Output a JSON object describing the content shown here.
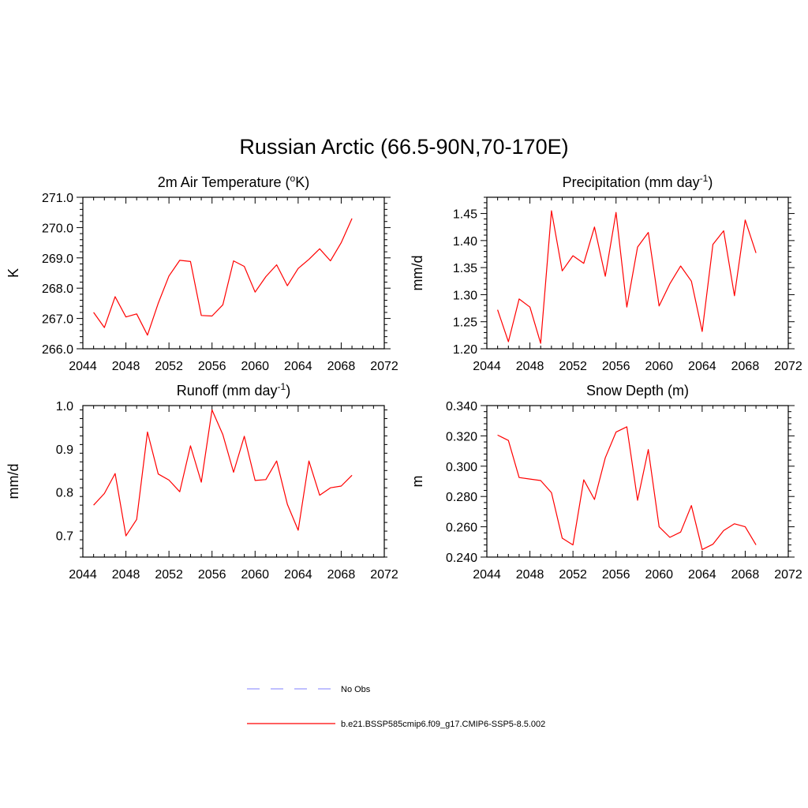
{
  "figure": {
    "title": "Russian Arctic (66.5-90N,70-170E)"
  },
  "colors": {
    "model_line": "#ff0000",
    "obs_line": "#9999ff",
    "axes": "#000000"
  },
  "legend": [
    {
      "label": "No Obs",
      "style": "dashed",
      "color": "#9999ff"
    },
    {
      "label": "b.e21.BSSP585cmip6.f09_g17.CMIP6-SSP5-8.5.002",
      "style": "solid",
      "color": "#ff0000"
    }
  ],
  "chart_data": [
    {
      "type": "line",
      "title": "2m Air Temperature (",
      "title_sup": "o",
      "title_after": "K)",
      "ylabel": "K",
      "xlim": [
        2044,
        2072
      ],
      "ylim": [
        266.0,
        271.0
      ],
      "xticks": [
        2044,
        2048,
        2052,
        2056,
        2060,
        2064,
        2068,
        2072
      ],
      "yticks": [
        "266.0",
        "267.0",
        "268.0",
        "269.0",
        "270.0",
        "271.0"
      ],
      "series": [
        {
          "x": [
            2045,
            2046,
            2047,
            2048,
            2049,
            2050,
            2051,
            2052,
            2053,
            2054,
            2055,
            2056,
            2057,
            2058,
            2059,
            2060,
            2061,
            2062,
            2063,
            2064,
            2065,
            2066,
            2067,
            2068,
            2069
          ],
          "values": [
            267.2,
            266.7,
            267.72,
            267.05,
            267.15,
            266.45,
            267.5,
            268.4,
            268.92,
            268.88,
            267.1,
            267.08,
            267.45,
            268.9,
            268.72,
            267.87,
            268.38,
            268.77,
            268.08,
            268.65,
            268.95,
            269.3,
            268.9,
            269.5,
            270.3
          ]
        }
      ]
    },
    {
      "type": "line",
      "title": "Precipitation (mm day",
      "title_sup": "-1",
      "title_after": ")",
      "ylabel": "mm/d",
      "xlim": [
        2044,
        2072
      ],
      "ylim": [
        1.2,
        1.48
      ],
      "xticks": [
        2044,
        2048,
        2052,
        2056,
        2060,
        2064,
        2068,
        2072
      ],
      "yticks": [
        "1.20",
        "1.25",
        "1.30",
        "1.35",
        "1.40",
        "1.45"
      ],
      "series": [
        {
          "x": [
            2045,
            2046,
            2047,
            2048,
            2049,
            2050,
            2051,
            2052,
            2053,
            2054,
            2055,
            2056,
            2057,
            2058,
            2059,
            2060,
            2061,
            2062,
            2063,
            2064,
            2065,
            2066,
            2067,
            2068,
            2069
          ],
          "values": [
            1.272,
            1.213,
            1.292,
            1.277,
            1.21,
            1.455,
            1.344,
            1.372,
            1.358,
            1.425,
            1.334,
            1.452,
            1.277,
            1.388,
            1.415,
            1.279,
            1.32,
            1.353,
            1.325,
            1.232,
            1.393,
            1.418,
            1.298,
            1.438,
            1.377
          ]
        }
      ]
    },
    {
      "type": "line",
      "title": "Runoff (mm day",
      "title_sup": "-1",
      "title_after": ")",
      "ylabel": "mm/d",
      "xlim": [
        2044,
        2072
      ],
      "ylim": [
        0.65,
        1.0
      ],
      "xticks": [
        2044,
        2048,
        2052,
        2056,
        2060,
        2064,
        2068,
        2072
      ],
      "yticks": [
        "0.7",
        "0.8",
        "0.9",
        "1.0"
      ],
      "series": [
        {
          "x": [
            2045,
            2046,
            2047,
            2048,
            2049,
            2050,
            2051,
            2052,
            2053,
            2054,
            2055,
            2056,
            2057,
            2058,
            2059,
            2060,
            2061,
            2062,
            2063,
            2064,
            2065,
            2066,
            2067,
            2068,
            2069
          ],
          "values": [
            0.77,
            0.797,
            0.843,
            0.699,
            0.737,
            0.939,
            0.842,
            0.828,
            0.801,
            0.907,
            0.823,
            0.99,
            0.933,
            0.846,
            0.929,
            0.827,
            0.829,
            0.872,
            0.772,
            0.712,
            0.872,
            0.793,
            0.81,
            0.814,
            0.839
          ]
        }
      ]
    },
    {
      "type": "line",
      "title": "Snow Depth (m)",
      "title_sup": "",
      "title_after": "",
      "ylabel": "m",
      "xlim": [
        2044,
        2072
      ],
      "ylim": [
        0.24,
        0.34
      ],
      "xticks": [
        2044,
        2048,
        2052,
        2056,
        2060,
        2064,
        2068,
        2072
      ],
      "yticks": [
        "0.240",
        "0.260",
        "0.280",
        "0.300",
        "0.320",
        "0.340"
      ],
      "series": [
        {
          "x": [
            2045,
            2046,
            2047,
            2048,
            2049,
            2050,
            2051,
            2052,
            2053,
            2054,
            2055,
            2056,
            2057,
            2058,
            2059,
            2060,
            2061,
            2062,
            2063,
            2064,
            2065,
            2066,
            2067,
            2068,
            2069
          ],
          "values": [
            0.3205,
            0.317,
            0.2925,
            0.2915,
            0.2905,
            0.2825,
            0.2525,
            0.248,
            0.291,
            0.278,
            0.3055,
            0.3225,
            0.326,
            0.2775,
            0.311,
            0.26,
            0.253,
            0.2565,
            0.274,
            0.245,
            0.2485,
            0.2575,
            0.262,
            0.26,
            0.248
          ]
        }
      ]
    }
  ]
}
